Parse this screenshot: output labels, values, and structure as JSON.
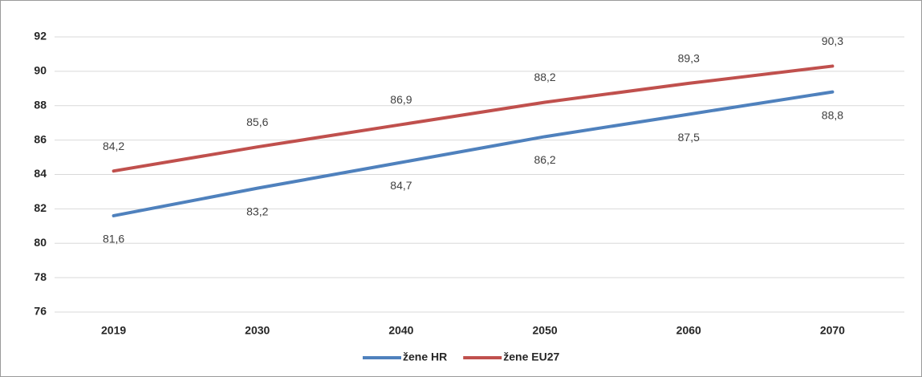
{
  "chart_data": {
    "type": "line",
    "categories": [
      "2019",
      "2030",
      "2040",
      "2050",
      "2060",
      "2070"
    ],
    "series": [
      {
        "name": "žene HR",
        "color": "#4f81bd",
        "values": [
          81.6,
          83.2,
          84.7,
          86.2,
          87.5,
          88.8
        ],
        "value_labels": [
          "81,6",
          "83,2",
          "84,7",
          "86,2",
          "87,5",
          "88,8"
        ]
      },
      {
        "name": "žene EU27",
        "color": "#c0504d",
        "values": [
          84.2,
          85.6,
          86.9,
          88.2,
          89.3,
          90.3
        ],
        "value_labels": [
          "84,2",
          "85,6",
          "86,9",
          "88,2",
          "89,3",
          "90,3"
        ]
      }
    ],
    "ylim": [
      76,
      92
    ],
    "yticks": [
      76,
      78,
      80,
      82,
      84,
      86,
      88,
      90,
      92
    ],
    "grid": true,
    "legend": "bottom"
  }
}
